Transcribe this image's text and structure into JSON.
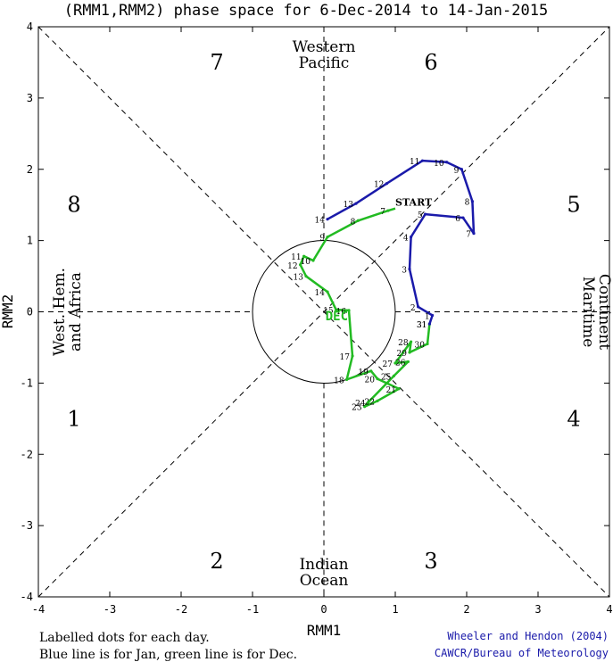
{
  "chart_data": {
    "type": "line",
    "title": "(RMM1,RMM2) phase space for  6-Dec-2014 to 14-Jan-2015",
    "xlabel": "RMM1",
    "ylabel": "RMM2",
    "xlim": [
      -4,
      4
    ],
    "ylim": [
      -4,
      4
    ],
    "x_ticks": [
      "-4",
      "-3",
      "-2",
      "-1",
      "0",
      "1",
      "2",
      "3",
      "4"
    ],
    "y_ticks": [
      "-4",
      "-3",
      "-2",
      "-1",
      "0",
      "1",
      "2",
      "3",
      "4"
    ],
    "phase_numbers": [
      "1",
      "2",
      "3",
      "4",
      "5",
      "6",
      "7",
      "8"
    ],
    "region_labels": {
      "top": [
        "Western",
        "Pacific"
      ],
      "bottom": [
        "Indian",
        "Ocean"
      ],
      "left": [
        "West. Hem.",
        "and Africa"
      ],
      "right": [
        "Maritime",
        "Continent"
      ]
    },
    "start_label": "START",
    "month_label": "DEC",
    "series": [
      {
        "name": "Dec",
        "color": "#22bb22",
        "points": [
          {
            "label": "",
            "x": 1.0,
            "y": 1.45
          },
          {
            "label": "7",
            "x": 0.9,
            "y": 1.42
          },
          {
            "label": "8",
            "x": 0.48,
            "y": 1.28
          },
          {
            "label": "9",
            "x": 0.05,
            "y": 1.05
          },
          {
            "label": "10",
            "x": -0.15,
            "y": 0.72
          },
          {
            "label": "11",
            "x": -0.28,
            "y": 0.78
          },
          {
            "label": "12",
            "x": -0.33,
            "y": 0.66
          },
          {
            "label": "13",
            "x": -0.25,
            "y": 0.5
          },
          {
            "label": "14",
            "x": 0.05,
            "y": 0.28
          },
          {
            "label": "15",
            "x": 0.17,
            "y": 0.03
          },
          {
            "label": "16",
            "x": 0.35,
            "y": 0.02
          },
          {
            "label": "17",
            "x": 0.4,
            "y": -0.62
          },
          {
            "label": "18",
            "x": 0.32,
            "y": -0.95
          },
          {
            "label": "19",
            "x": 0.66,
            "y": -0.83
          },
          {
            "label": "20",
            "x": 0.75,
            "y": -0.94
          },
          {
            "label": "21",
            "x": 1.05,
            "y": -1.08
          },
          {
            "label": "22",
            "x": 0.75,
            "y": -1.25
          },
          {
            "label": "23",
            "x": 0.57,
            "y": -1.33
          },
          {
            "label": "24",
            "x": 0.62,
            "y": -1.27
          },
          {
            "label": "25",
            "x": 0.98,
            "y": -0.9
          },
          {
            "label": "26",
            "x": 1.18,
            "y": -0.7
          },
          {
            "label": "27",
            "x": 1.0,
            "y": -0.72
          },
          {
            "label": "28",
            "x": 1.22,
            "y": -0.42
          },
          {
            "label": "29",
            "x": 1.2,
            "y": -0.57
          },
          {
            "label": "30",
            "x": 1.45,
            "y": -0.45
          },
          {
            "label": "31",
            "x": 1.48,
            "y": -0.17
          }
        ]
      },
      {
        "name": "Jan",
        "color": "#1a1aaa",
        "points": [
          {
            "label": "31",
            "x": 1.48,
            "y": -0.17
          },
          {
            "label": "1",
            "x": 1.52,
            "y": -0.05
          },
          {
            "label": "2",
            "x": 1.32,
            "y": 0.07
          },
          {
            "label": "3",
            "x": 1.2,
            "y": 0.6
          },
          {
            "label": "4",
            "x": 1.22,
            "y": 1.05
          },
          {
            "label": "5",
            "x": 1.42,
            "y": 1.37
          },
          {
            "label": "6",
            "x": 1.95,
            "y": 1.32
          },
          {
            "label": "7",
            "x": 2.1,
            "y": 1.1
          },
          {
            "label": "8",
            "x": 2.08,
            "y": 1.55
          },
          {
            "label": "9",
            "x": 1.93,
            "y": 2.0
          },
          {
            "label": "10",
            "x": 1.72,
            "y": 2.1
          },
          {
            "label": "11",
            "x": 1.38,
            "y": 2.12
          },
          {
            "label": "12",
            "x": 0.88,
            "y": 1.8
          },
          {
            "label": "13",
            "x": 0.45,
            "y": 1.52
          },
          {
            "label": "14",
            "x": 0.05,
            "y": 1.3
          }
        ]
      }
    ],
    "notes": [
      "Labelled dots for each day.",
      "Blue line is for Jan, green line is for Dec."
    ],
    "credits": [
      "Wheeler and Hendon (2004)",
      "CAWCR/Bureau of Meteorology"
    ],
    "credit_color": "#1a1aaa"
  }
}
